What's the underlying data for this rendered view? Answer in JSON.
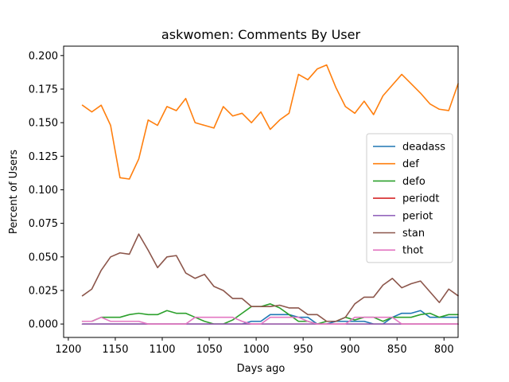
{
  "chart_data": {
    "type": "line",
    "title": "askwomen: Comments By User",
    "xlabel": "Days ago",
    "ylabel": "Percent of Users",
    "x_inverted": true,
    "xlim": [
      1205,
      785
    ],
    "ylim": [
      -0.01,
      0.207
    ],
    "x_ticks": [
      1200,
      1150,
      1100,
      1050,
      1000,
      950,
      900,
      850,
      800
    ],
    "y_ticks": [
      0.0,
      0.025,
      0.05,
      0.075,
      0.1,
      0.125,
      0.15,
      0.175,
      0.2
    ],
    "y_tick_labels": [
      "0.000",
      "0.025",
      "0.050",
      "0.075",
      "0.100",
      "0.125",
      "0.150",
      "0.175",
      "0.200"
    ],
    "grid": false,
    "legend_position": "center-right",
    "x": [
      1185,
      1175,
      1165,
      1155,
      1145,
      1135,
      1125,
      1115,
      1105,
      1095,
      1085,
      1075,
      1065,
      1055,
      1045,
      1035,
      1025,
      1015,
      1005,
      995,
      985,
      975,
      965,
      955,
      945,
      935,
      925,
      915,
      905,
      895,
      885,
      875,
      865,
      855,
      845,
      835,
      825,
      815,
      805,
      795,
      785
    ],
    "series": [
      {
        "name": "deadass",
        "color": "#1f77b4",
        "values": [
          0.0,
          0.0,
          0.0,
          0.0,
          0.0,
          0.0,
          0.0,
          0.0,
          0.0,
          0.0,
          0.0,
          0.0,
          0.0,
          0.0,
          0.0,
          0.0,
          0.0,
          0.0,
          0.002,
          0.002,
          0.007,
          0.007,
          0.007,
          0.005,
          0.005,
          0.0,
          0.0,
          0.002,
          0.002,
          0.002,
          0.002,
          0.0,
          0.0,
          0.005,
          0.008,
          0.008,
          0.01,
          0.005,
          0.005,
          0.005,
          0.005
        ]
      },
      {
        "name": "def",
        "color": "#ff7f0e",
        "values": [
          0.163,
          0.158,
          0.163,
          0.148,
          0.109,
          0.108,
          0.123,
          0.152,
          0.148,
          0.162,
          0.159,
          0.168,
          0.15,
          0.148,
          0.146,
          0.162,
          0.155,
          0.157,
          0.15,
          0.158,
          0.145,
          0.152,
          0.157,
          0.186,
          0.182,
          0.19,
          0.193,
          0.176,
          0.162,
          0.157,
          0.166,
          0.156,
          0.17,
          0.178,
          0.186,
          0.179,
          0.172,
          0.164,
          0.16,
          0.159,
          0.179
        ]
      },
      {
        "name": "defo",
        "color": "#2ca02c",
        "values": [
          0.002,
          0.002,
          0.005,
          0.005,
          0.005,
          0.007,
          0.008,
          0.007,
          0.007,
          0.01,
          0.008,
          0.008,
          0.005,
          0.002,
          0.0,
          0.0,
          0.003,
          0.008,
          0.013,
          0.013,
          0.015,
          0.012,
          0.007,
          0.002,
          0.002,
          0.0,
          0.002,
          0.002,
          0.005,
          0.003,
          0.005,
          0.005,
          0.002,
          0.005,
          0.005,
          0.005,
          0.007,
          0.008,
          0.005,
          0.007,
          0.007
        ]
      },
      {
        "name": "periodt",
        "color": "#d62728",
        "values": [
          0,
          0,
          0,
          0,
          0,
          0,
          0,
          0,
          0,
          0,
          0,
          0,
          0,
          0,
          0,
          0,
          0,
          0,
          0,
          0,
          0,
          0,
          0,
          0,
          0,
          0,
          0,
          0,
          0,
          0,
          0,
          0,
          0,
          0,
          0,
          0,
          0,
          0,
          0,
          0,
          0
        ]
      },
      {
        "name": "periot",
        "color": "#9467bd",
        "values": [
          0,
          0,
          0,
          0,
          0,
          0,
          0,
          0,
          0,
          0,
          0,
          0,
          0,
          0,
          0,
          0,
          0,
          0,
          0,
          0,
          0,
          0,
          0,
          0,
          0,
          0,
          0,
          0,
          0,
          0,
          0,
          0,
          0,
          0,
          0,
          0,
          0,
          0,
          0,
          0,
          0
        ]
      },
      {
        "name": "stan",
        "color": "#8c564b",
        "values": [
          0.021,
          0.026,
          0.04,
          0.05,
          0.053,
          0.052,
          0.067,
          0.055,
          0.042,
          0.05,
          0.051,
          0.038,
          0.034,
          0.037,
          0.028,
          0.025,
          0.019,
          0.019,
          0.013,
          0.013,
          0.013,
          0.014,
          0.012,
          0.012,
          0.007,
          0.007,
          0.002,
          0.002,
          0.005,
          0.015,
          0.02,
          0.02,
          0.029,
          0.034,
          0.027,
          0.03,
          0.032,
          0.024,
          0.016,
          0.026,
          0.021
        ]
      },
      {
        "name": "thot",
        "color": "#e377c2",
        "values": [
          0.002,
          0.002,
          0.005,
          0.002,
          0.002,
          0.002,
          0.002,
          0.0,
          0.0,
          0.0,
          0.0,
          0.0,
          0.005,
          0.005,
          0.005,
          0.005,
          0.005,
          0.002,
          0.0,
          0.0,
          0.005,
          0.005,
          0.005,
          0.005,
          0.002,
          0.0,
          0.0,
          0.0,
          0.0,
          0.005,
          0.005,
          0.005,
          0.005,
          0.005,
          0.0,
          0.0,
          0.0,
          0.0,
          0.0,
          0.0,
          0.0
        ]
      }
    ]
  }
}
